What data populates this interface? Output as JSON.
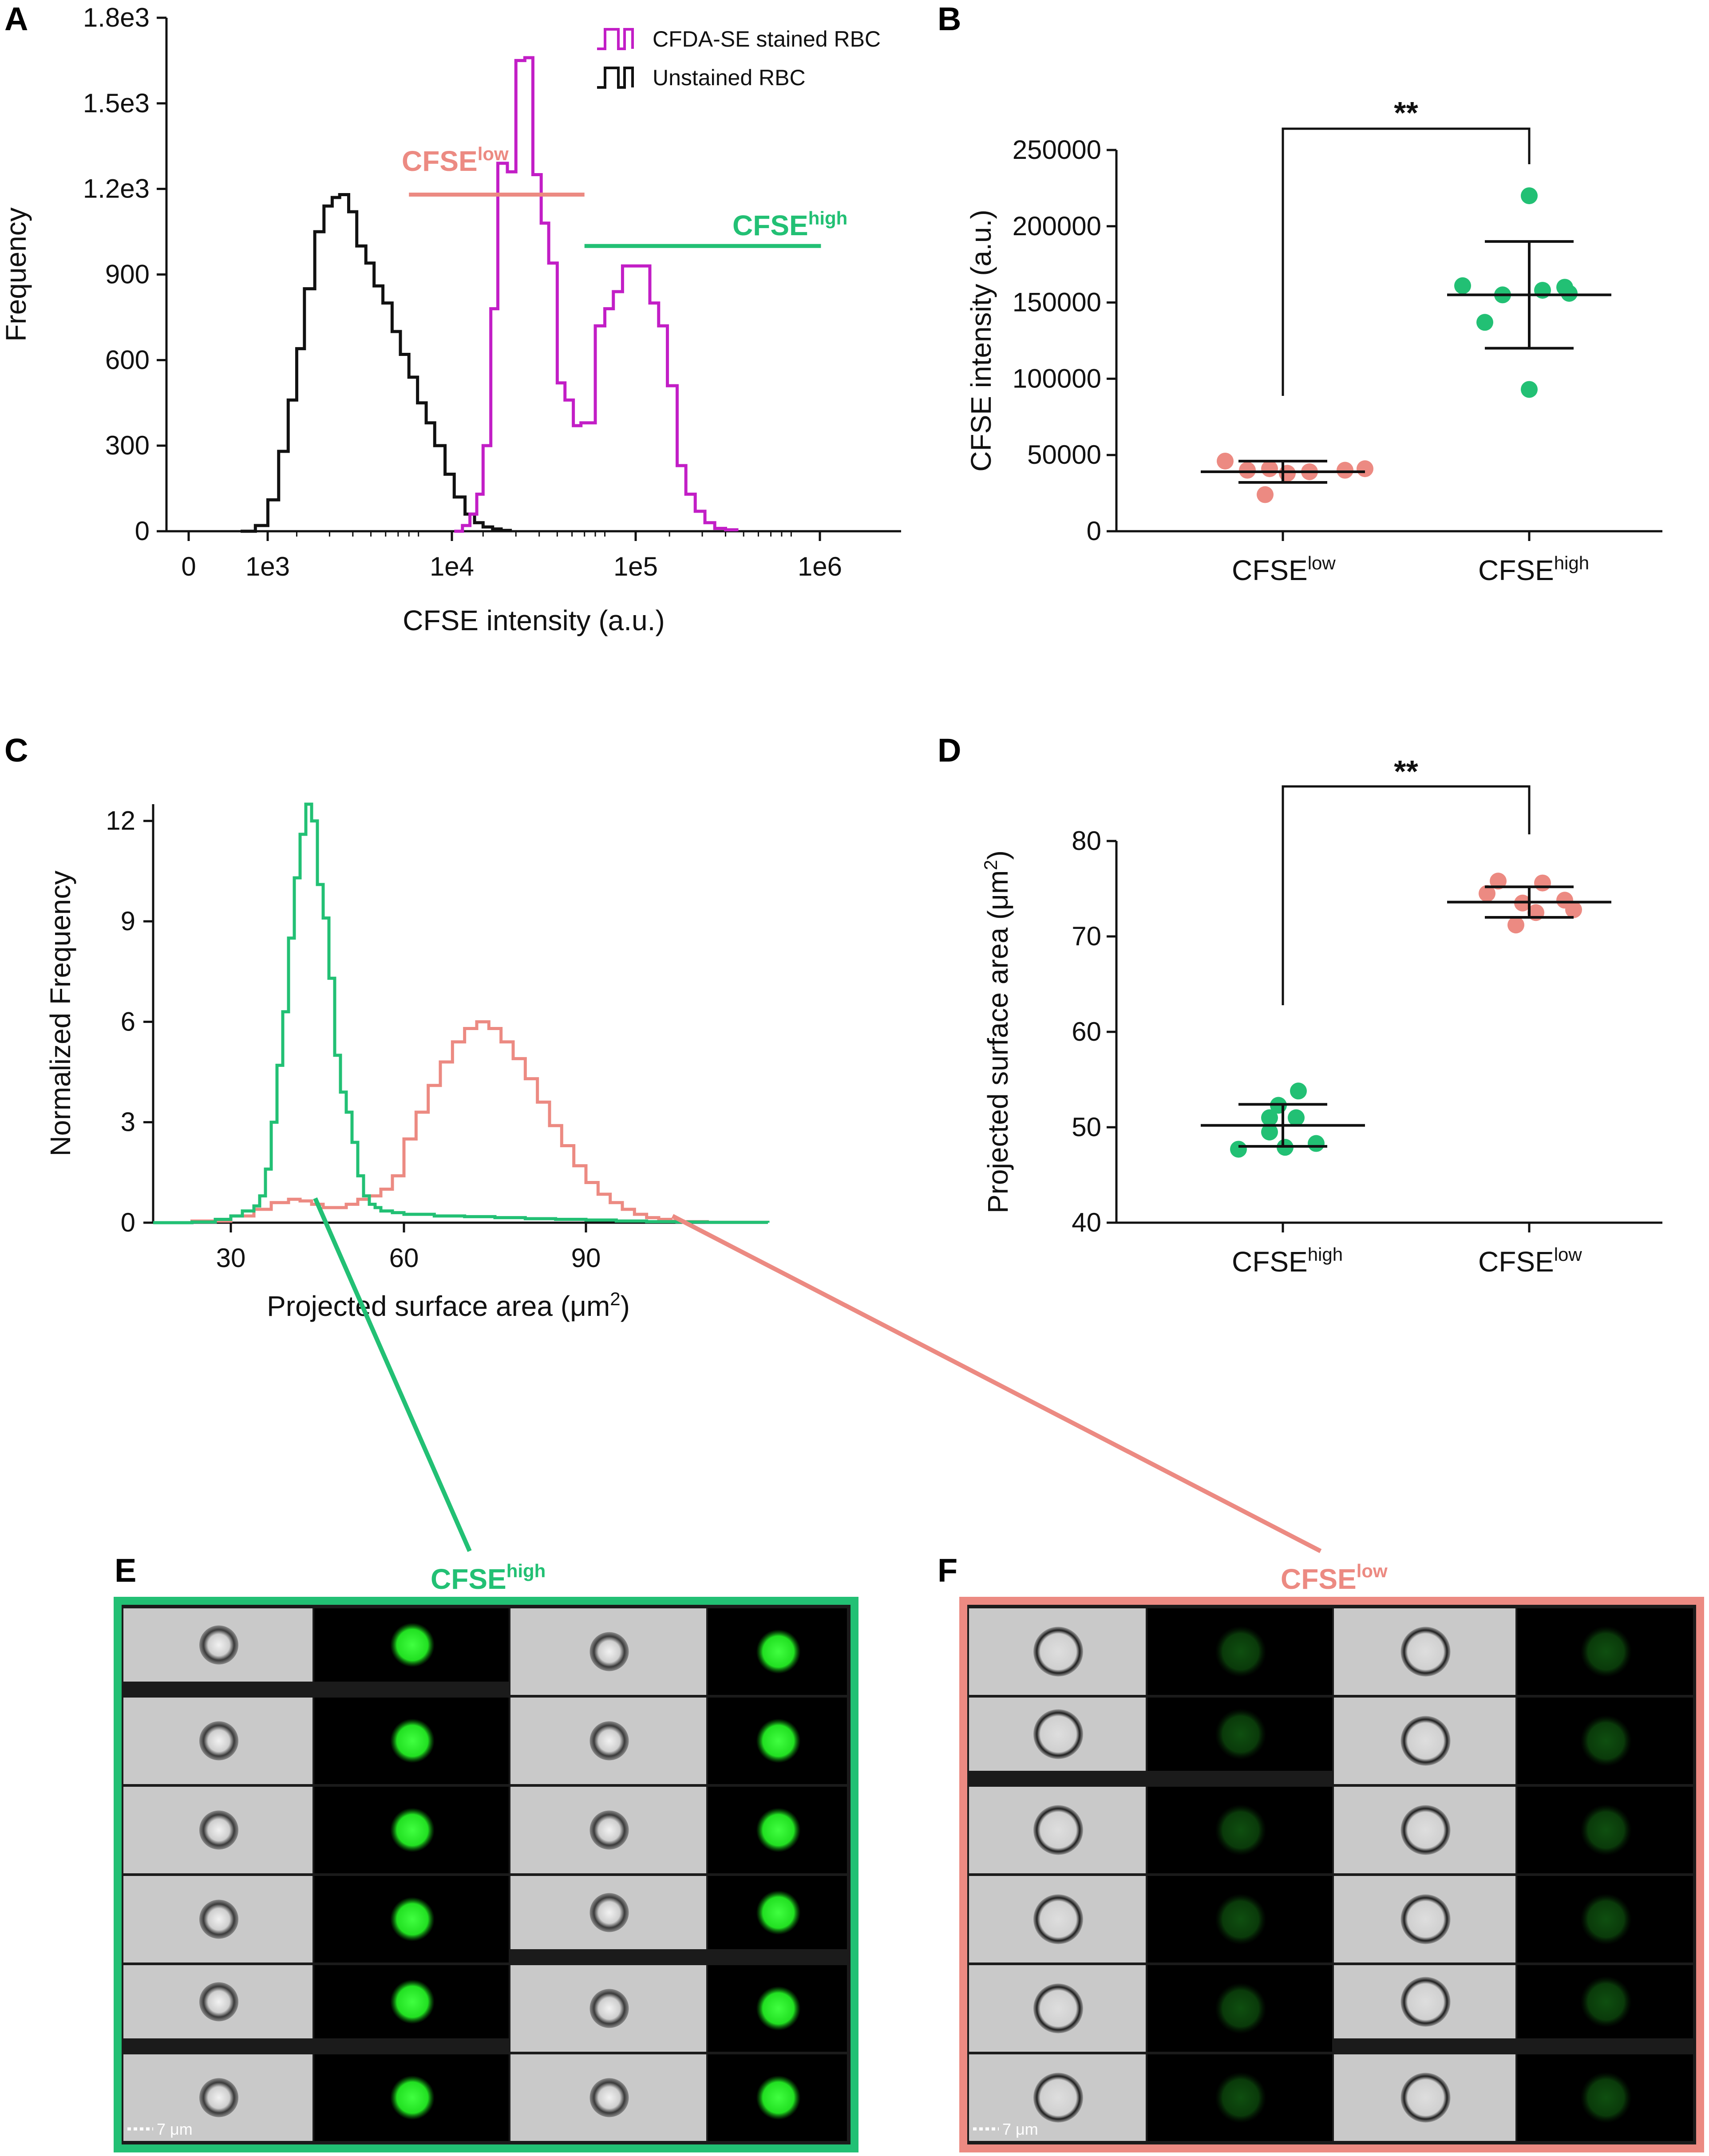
{
  "colors": {
    "stained": "#c21ec6",
    "unstained": "#111111",
    "cfse_low": "#ec8a82",
    "cfse_high": "#22c074",
    "black": "#111111"
  },
  "panels": {
    "A": "A",
    "B": "B",
    "C": "C",
    "D": "D",
    "E": "E",
    "F": "F"
  },
  "cfse": {
    "base": "CFSE",
    "low": "low",
    "high": "high"
  },
  "significance": "**",
  "scale_bar": "7 μm",
  "chart_data": [
    {
      "id": "A",
      "type": "line",
      "title": "",
      "xlabel": "CFSE intensity (a.u.)",
      "ylabel": "Frequency",
      "x_scale": "log",
      "xticks": [
        "0",
        "1e3",
        "1e4",
        "1e5",
        "1e6"
      ],
      "yticks": [
        "0",
        "300",
        "600",
        "900",
        "1.2e3",
        "1.5e3",
        "1.8e3"
      ],
      "ylim": [
        0,
        1800
      ],
      "legend": {
        "position": "top-right",
        "entries": [
          "CFDA-SE stained RBC",
          "Unstained RBC"
        ]
      },
      "gate_labels": {
        "low": "CFSE low",
        "high": "CFSE high"
      },
      "gates": [
        {
          "name": "CFSE low",
          "from": 8000,
          "to": 70000,
          "y": 1180
        },
        {
          "name": "CFSE high",
          "from": 70000,
          "to": 1300000,
          "y": 1000
        }
      ],
      "series": [
        {
          "name": "Unstained RBC",
          "x": [
            1000,
            1200,
            1400,
            1600,
            1800,
            2000,
            2200,
            2500,
            2800,
            3100,
            3400,
            3800,
            4200,
            4700,
            5200,
            5800,
            6500,
            7200,
            8000,
            8900,
            9900,
            11000,
            12500,
            14000,
            16000,
            18000,
            20000,
            22500,
            25000,
            28000
          ],
          "values": [
            0,
            20,
            110,
            280,
            460,
            640,
            850,
            1050,
            1140,
            1170,
            1180,
            1120,
            1000,
            940,
            860,
            800,
            700,
            620,
            540,
            450,
            380,
            300,
            200,
            120,
            60,
            30,
            15,
            8,
            3,
            0
          ]
        },
        {
          "name": "CFDA-SE stained RBC",
          "x": [
            14000,
            15500,
            17000,
            18500,
            20000,
            22000,
            24000,
            27000,
            30000,
            33500,
            37000,
            41000,
            45000,
            50000,
            55000,
            61000,
            67000,
            73000,
            80000,
            90000,
            100000,
            112000,
            125000,
            140000,
            157000,
            175000,
            195000,
            220000,
            245000,
            275000,
            310000,
            350000,
            400000,
            460000
          ],
          "values": [
            0,
            20,
            60,
            130,
            300,
            780,
            1290,
            1260,
            1650,
            1660,
            1250,
            1080,
            940,
            520,
            460,
            370,
            380,
            380,
            720,
            780,
            840,
            930,
            930,
            930,
            800,
            720,
            510,
            230,
            130,
            70,
            30,
            10,
            5,
            0
          ]
        }
      ]
    },
    {
      "id": "B",
      "type": "scatter",
      "ylabel": "CFSE intensity (a.u.)",
      "categories": [
        "CFSE low",
        "CFSE high"
      ],
      "yticks": [
        "0",
        "50000",
        "100000",
        "150000",
        "200000",
        "250000"
      ],
      "ylim": [
        0,
        250000
      ],
      "series": [
        {
          "name": "CFSE low",
          "points": [
            46000,
            40000,
            41000,
            38000,
            39000,
            40000,
            41000,
            24000
          ],
          "mean": 39000,
          "sd": 7000
        },
        {
          "name": "CFSE high",
          "points": [
            220000,
            161000,
            155000,
            158000,
            160000,
            137000,
            156000,
            93000
          ],
          "mean": 155000,
          "sd": 35000
        }
      ],
      "significance": "**"
    },
    {
      "id": "C",
      "type": "line",
      "xlabel": "Projected surface area (μm2)",
      "ylabel": "Normalized Frequency",
      "xticks": [
        "30",
        "60",
        "90"
      ],
      "yticks": [
        "0",
        "3",
        "6",
        "9",
        "12"
      ],
      "xlim": [
        20,
        120
      ],
      "ylim": [
        0,
        12.5
      ],
      "series": [
        {
          "name": "CFSE high",
          "x": [
            20,
            25,
            28,
            30,
            32,
            34,
            35,
            36,
            37,
            38,
            39,
            40,
            41,
            42,
            43,
            44,
            45,
            46,
            47,
            48,
            49,
            50,
            51,
            52,
            53,
            54,
            55,
            56,
            58,
            60,
            65,
            70,
            75,
            80,
            85,
            90,
            95,
            100,
            105,
            110,
            120
          ],
          "values": [
            0,
            0.02,
            0.1,
            0.2,
            0.35,
            0.5,
            0.8,
            1.6,
            3.0,
            4.7,
            6.3,
            8.5,
            10.3,
            11.6,
            12.5,
            12.0,
            10.1,
            9.1,
            7.3,
            5.0,
            3.9,
            3.3,
            2.4,
            1.4,
            0.8,
            0.55,
            0.45,
            0.35,
            0.3,
            0.25,
            0.2,
            0.18,
            0.15,
            0.12,
            0.1,
            0.08,
            0.05,
            0.03,
            0.02,
            0.01,
            0
          ]
        },
        {
          "name": "CFSE low",
          "x": [
            20,
            25,
            30,
            34,
            37,
            40,
            42,
            44,
            46,
            48,
            50,
            52,
            54,
            56,
            58,
            60,
            62,
            64,
            66,
            68,
            70,
            72,
            74,
            76,
            78,
            80,
            82,
            84,
            86,
            88,
            90,
            92,
            94,
            96,
            98,
            100,
            102,
            104,
            106,
            110,
            120
          ],
          "values": [
            0,
            0.05,
            0.2,
            0.4,
            0.6,
            0.7,
            0.65,
            0.55,
            0.45,
            0.45,
            0.55,
            0.7,
            0.8,
            1.0,
            1.4,
            2.5,
            3.3,
            4.1,
            4.8,
            5.4,
            5.8,
            6.0,
            5.8,
            5.4,
            4.9,
            4.3,
            3.6,
            2.9,
            2.3,
            1.7,
            1.2,
            0.85,
            0.6,
            0.4,
            0.25,
            0.15,
            0.1,
            0.05,
            0.03,
            0.01,
            0
          ]
        }
      ]
    },
    {
      "id": "D",
      "type": "scatter",
      "ylabel": "Projected surface area (μm2)",
      "categories": [
        "CFSE high",
        "CFSE low"
      ],
      "yticks": [
        "40",
        "50",
        "60",
        "70",
        "80"
      ],
      "ylim": [
        40,
        80
      ],
      "series": [
        {
          "name": "CFSE high",
          "points": [
            53.8,
            52.3,
            51.0,
            51.0,
            49.5,
            48.3,
            47.7,
            47.9
          ],
          "mean": 50.2,
          "sd": 2.2
        },
        {
          "name": "CFSE low",
          "points": [
            75.8,
            75.6,
            74.5,
            73.8,
            73.5,
            72.8,
            72.5,
            71.2
          ],
          "mean": 73.6,
          "sd": 1.6
        },
        {
          "name": "_",
          "points": [],
          "mean": 0,
          "sd": 0
        }
      ],
      "significance": "**"
    }
  ]
}
